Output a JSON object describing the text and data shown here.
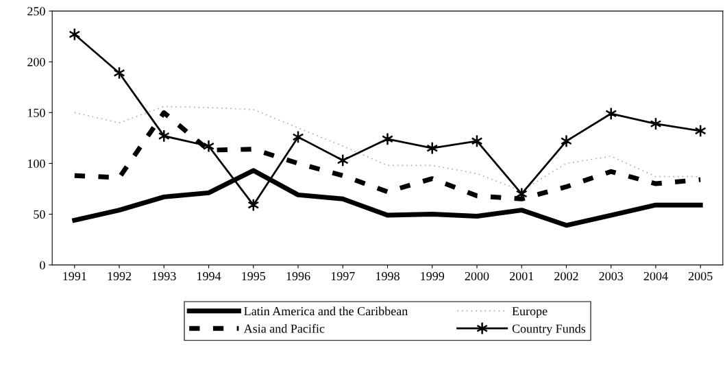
{
  "chart_data": {
    "type": "line",
    "categories": [
      "1991",
      "1992",
      "1993",
      "1994",
      "1995",
      "1996",
      "1997",
      "1998",
      "1999",
      "2000",
      "2001",
      "2002",
      "2003",
      "2004",
      "2005"
    ],
    "series": [
      {
        "name": "Latin America and the Caribbean",
        "color": "#000000",
        "line_style": "solid",
        "marker": "none",
        "values": [
          44,
          54,
          67,
          71,
          93,
          69,
          65,
          49,
          50,
          48,
          54,
          39,
          49,
          59,
          59
        ]
      },
      {
        "name": "Asia and Pacific",
        "color": "#000000",
        "line_style": "dashed",
        "marker": "none",
        "values": [
          88,
          86,
          150,
          113,
          114,
          100,
          88,
          72,
          85,
          68,
          65,
          77,
          92,
          80,
          84
        ]
      },
      {
        "name": "Europe",
        "color": "#aaaaaa",
        "line_style": "dotted",
        "marker": "none",
        "values": [
          150,
          140,
          156,
          155,
          153,
          135,
          117,
          98,
          98,
          90,
          73,
          100,
          107,
          87,
          87
        ]
      },
      {
        "name": "Country Funds",
        "color": "#000000",
        "line_style": "solid",
        "marker": "cross",
        "values": [
          227,
          189,
          127,
          117,
          59,
          126,
          103,
          124,
          115,
          122,
          70,
          122,
          149,
          139,
          132
        ]
      }
    ],
    "ylim": [
      0,
      250
    ],
    "yticks": [
      0,
      50,
      100,
      150,
      200,
      250
    ],
    "grid": false,
    "legend": "bottom"
  }
}
